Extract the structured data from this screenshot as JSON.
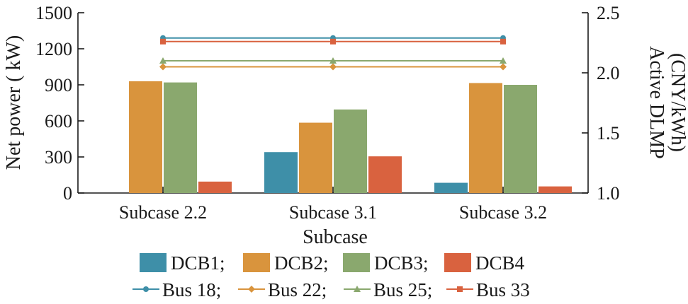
{
  "chart_data": {
    "type": "bar",
    "categories": [
      "Subcase 2.2",
      "Subcase 3.1",
      "Subcase 3.2"
    ],
    "xlabel": "Subcase",
    "ylabel": "Net power ( kW)",
    "y2label_line1": "Active DLMP",
    "y2label_line2": "(CNY/kWh)",
    "ylim": [
      0,
      1500
    ],
    "yticks": [
      0,
      300,
      600,
      900,
      1200,
      1500
    ],
    "y2lim": [
      1.0,
      2.5
    ],
    "y2ticks": [
      "1.0",
      "1.5",
      "2.0",
      "2.5"
    ],
    "bar_series": [
      {
        "name": "DCB1",
        "legend_label": "DCB1;",
        "color": "#3e8fa8",
        "values": [
          0,
          340,
          85
        ]
      },
      {
        "name": "DCB2",
        "legend_label": "DCB2;",
        "color": "#d9943d",
        "values": [
          930,
          585,
          915
        ]
      },
      {
        "name": "DCB3",
        "legend_label": "DCB3;",
        "color": "#8aa86e",
        "values": [
          920,
          695,
          900
        ]
      },
      {
        "name": "DCB4",
        "legend_label": "DCB4",
        "color": "#d9623f",
        "values": [
          95,
          305,
          55
        ]
      }
    ],
    "line_series": [
      {
        "name": "Bus 18",
        "legend_label": "Bus 18;",
        "color": "#3e8fa8",
        "marker": "circle",
        "values": [
          2.29,
          2.29,
          2.29
        ]
      },
      {
        "name": "Bus 22",
        "legend_label": "Bus 22;",
        "color": "#d9943d",
        "marker": "diamond",
        "values": [
          2.05,
          2.05,
          2.05
        ]
      },
      {
        "name": "Bus 25",
        "legend_label": "Bus 25;",
        "color": "#8aa86e",
        "marker": "triangle",
        "values": [
          2.1,
          2.1,
          2.1
        ]
      },
      {
        "name": "Bus 33",
        "legend_label": "Bus 33",
        "color": "#d9623f",
        "marker": "square",
        "values": [
          2.26,
          2.26,
          2.26
        ]
      }
    ]
  }
}
